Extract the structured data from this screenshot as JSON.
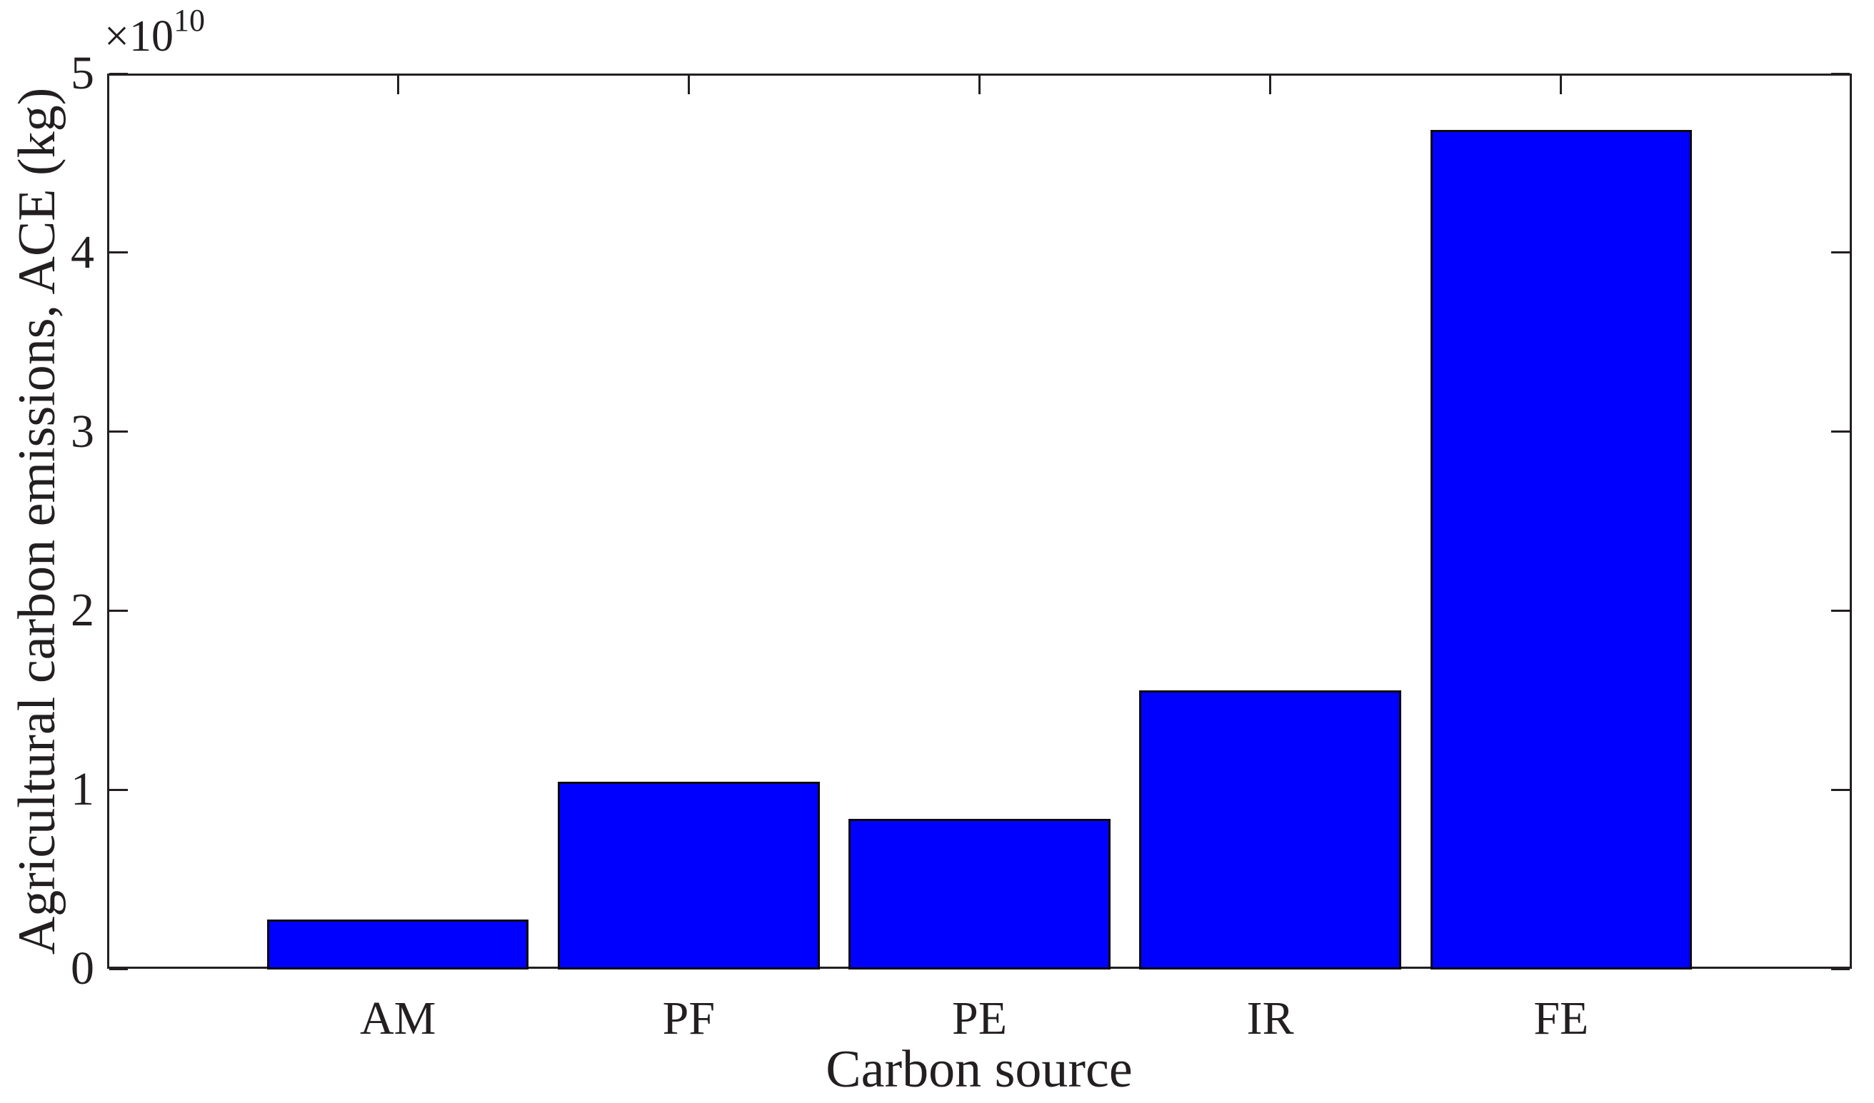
{
  "chart_data": {
    "type": "bar",
    "title": "",
    "categories": [
      "AM",
      "PF",
      "PE",
      "IR",
      "FE"
    ],
    "values": [
      2700000000.0,
      10400000000.0,
      8300000000.0,
      15500000000.0,
      46800000000.0
    ],
    "series": [
      {
        "name": "Agricultural carbon emissions",
        "values": [
          2700000000.0,
          10400000000.0,
          8300000000.0,
          15500000000.0,
          46800000000.0
        ]
      }
    ],
    "xlabel": "Carbon source",
    "ylabel": "Agricultural carbon emissions, ACE (kg)",
    "ylim": [
      0,
      50000000000.0
    ],
    "yticks": [
      0,
      1,
      2,
      3,
      4,
      5
    ],
    "ytick_scale": 10000000000.0,
    "offset_text": {
      "base": "×10",
      "exponent": "10"
    },
    "xlim": [
      0,
      6
    ],
    "bar_positions": [
      1,
      2,
      3,
      4,
      5
    ],
    "bar_width_fraction": 0.9,
    "bar_color": "#0000fe",
    "bar_edge_color": "#0d0a0b",
    "axis_color": "#231f20",
    "text_color": "#231f20",
    "grid": false,
    "legend_position": "none",
    "tick_direction": "in",
    "box": true
  }
}
